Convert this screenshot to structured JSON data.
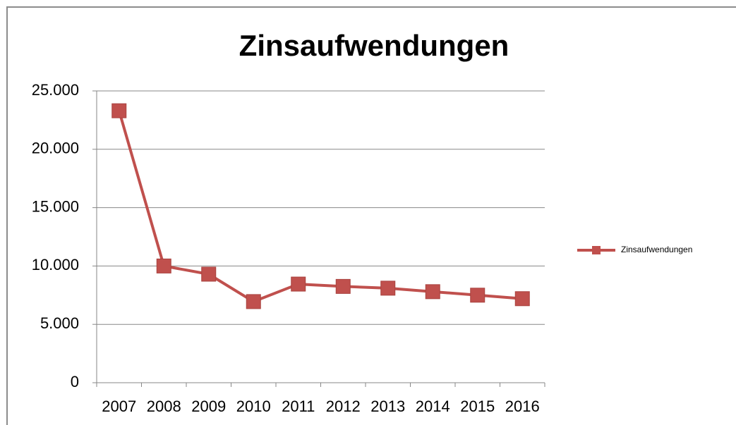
{
  "chart_data": {
    "type": "line",
    "title": "Zinsaufwendungen",
    "categories": [
      "2007",
      "2008",
      "2009",
      "2010",
      "2011",
      "2012",
      "2013",
      "2014",
      "2015",
      "2016"
    ],
    "series": [
      {
        "name": "Zinsaufwendungen",
        "color": "#c0504d",
        "values": [
          23300,
          10000,
          9300,
          6950,
          8450,
          8250,
          8100,
          7800,
          7500,
          7200
        ]
      }
    ],
    "ylim": [
      0,
      25000
    ],
    "yticks": [
      0,
      {
        "value": 5000,
        "label": "5.000"
      },
      {
        "value": 10000,
        "label": "10.000"
      },
      {
        "value": 15000,
        "label": "15.000"
      },
      {
        "value": 20000,
        "label": "20.000"
      },
      {
        "value": 25000,
        "label": "25.000"
      }
    ],
    "grid": true,
    "legend": "right"
  }
}
